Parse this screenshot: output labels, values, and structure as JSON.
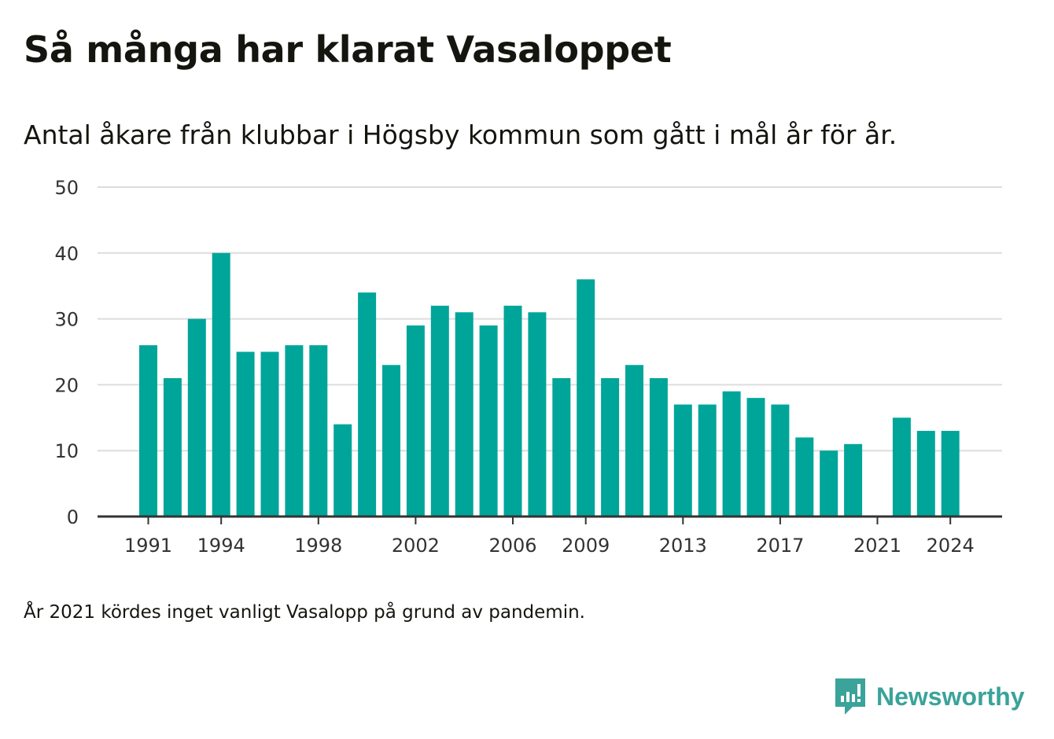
{
  "header": {
    "title": "Så många har klarat Vasaloppet",
    "subtitle": "Antal åkare från klubbar i Högsby kommun som gått i mål år för år."
  },
  "footnote": "År 2021 kördes inget vanligt Vasalopp på grund av pandemin.",
  "brand": {
    "name": "Newsworthy",
    "icon": "newsworthy-logo-icon",
    "color": "#3aa39a"
  },
  "colors": {
    "bar": "#00a59a",
    "grid": "#dddddd",
    "axis": "#333333",
    "text": "#333333"
  },
  "chart_data": {
    "type": "bar",
    "x": [
      1991,
      1992,
      1993,
      1994,
      1995,
      1996,
      1997,
      1998,
      1999,
      2000,
      2001,
      2002,
      2003,
      2004,
      2005,
      2006,
      2007,
      2008,
      2009,
      2010,
      2011,
      2012,
      2013,
      2014,
      2015,
      2016,
      2017,
      2018,
      2019,
      2020,
      2021,
      2022,
      2023,
      2024
    ],
    "values": [
      26,
      21,
      30,
      40,
      25,
      25,
      26,
      26,
      14,
      34,
      23,
      29,
      32,
      31,
      29,
      32,
      31,
      21,
      36,
      21,
      23,
      21,
      17,
      17,
      19,
      18,
      17,
      12,
      10,
      11,
      0,
      15,
      13,
      13
    ],
    "xticks": [
      "1991",
      "1994",
      "1998",
      "2002",
      "2006",
      "2009",
      "2013",
      "2017",
      "2021",
      "2024"
    ],
    "yticks": [
      "0",
      "10",
      "20",
      "30",
      "40",
      "50"
    ],
    "ylim": [
      0,
      50
    ],
    "grid": true,
    "legend": "none"
  }
}
